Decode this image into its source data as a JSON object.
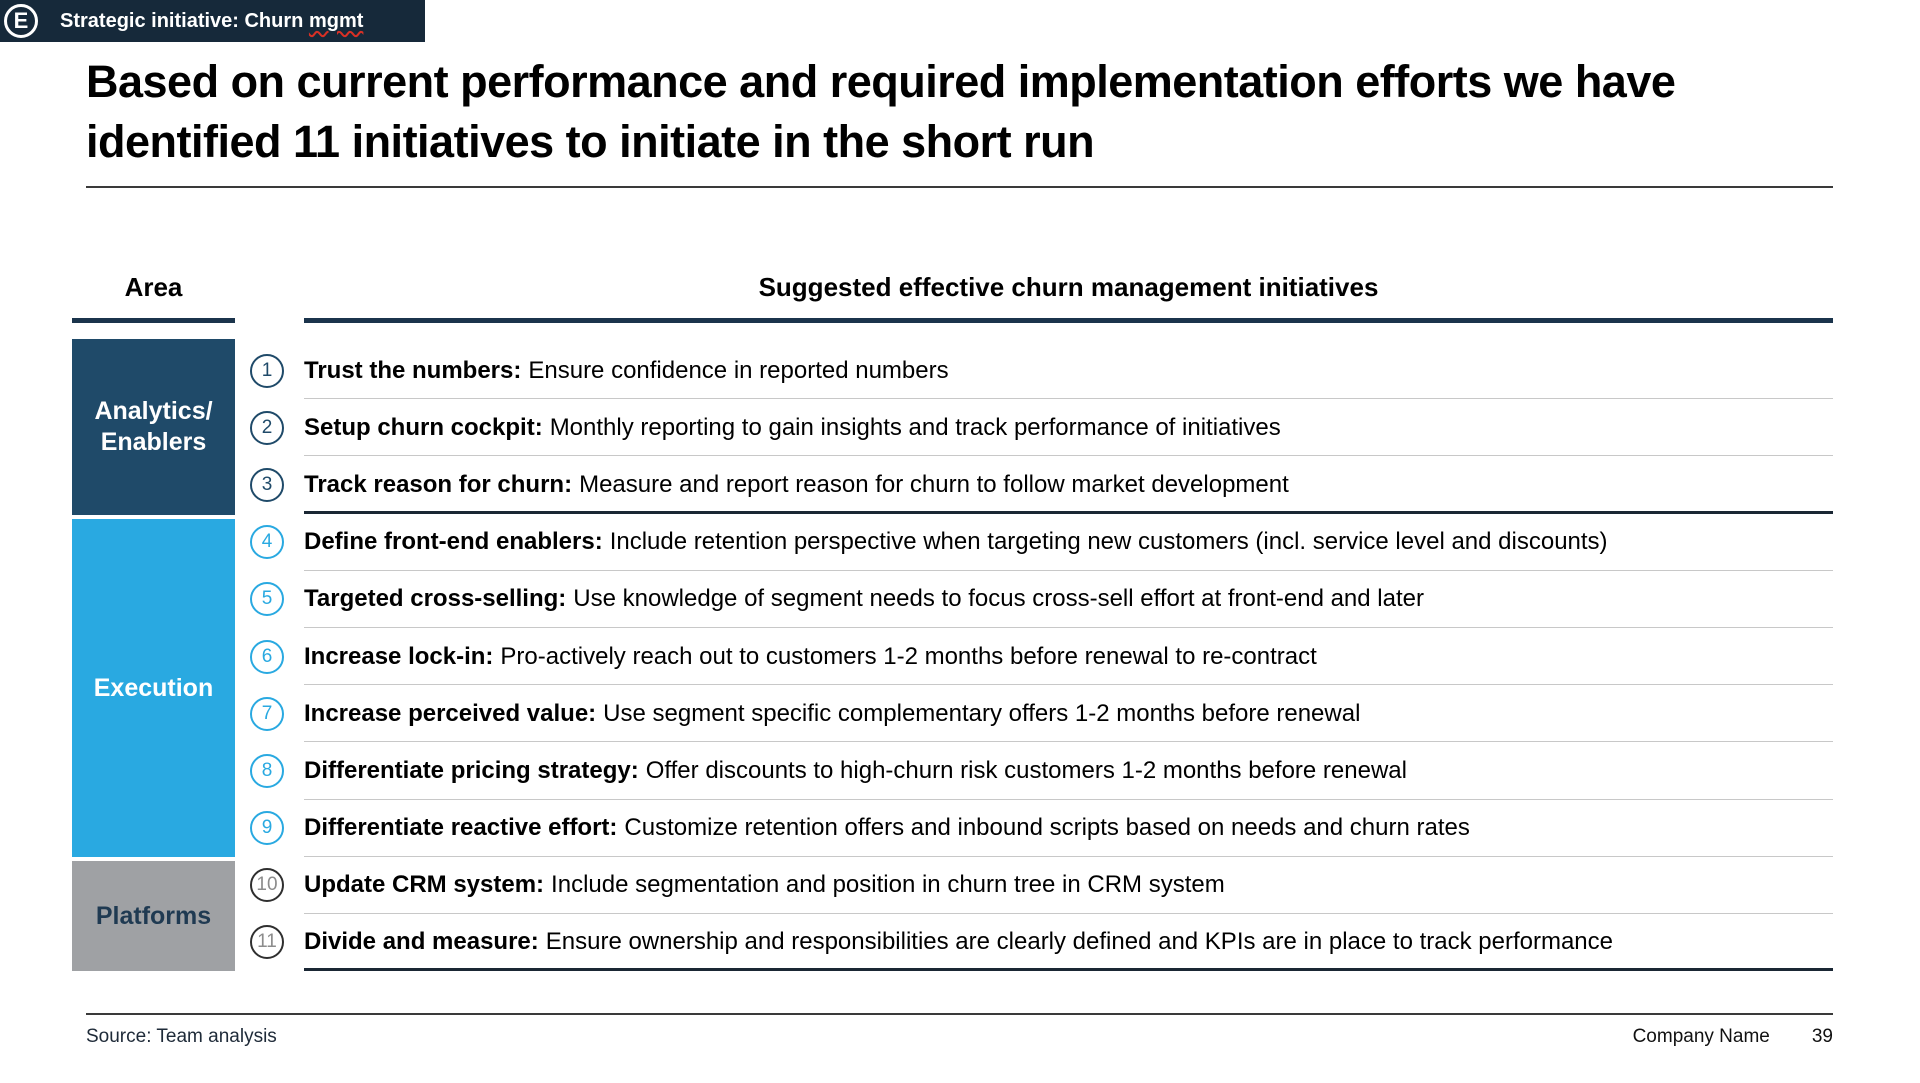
{
  "badge": {
    "letter": "E",
    "label": "Strategic initiative: Churn",
    "flagged_word": "mgmt"
  },
  "title": "Based on current performance and required implementation efforts we have identified 11 initiatives to initiate in the short run",
  "table": {
    "area_header": "Area",
    "initiatives_header": "Suggested effective churn management initiatives",
    "groups": [
      {
        "label": "Analytics/\nEnablers",
        "color": "#1F4A69",
        "text_color": "#FFFFFF",
        "rows": "1-3"
      },
      {
        "label": "Execution",
        "color": "#29A9E1",
        "text_color": "#FFFFFF",
        "rows": "4-9"
      },
      {
        "label": "Platforms",
        "color": "#9FA1A4",
        "text_color": "#1F3A52",
        "rows": "10-11"
      }
    ],
    "rows": [
      {
        "number": "1",
        "label": "Trust the numbers:",
        "description": "Ensure confidence in reported numbers"
      },
      {
        "number": "2",
        "label": "Setup churn cockpit:",
        "description": "Monthly reporting to gain insights and track performance of initiatives"
      },
      {
        "number": "3",
        "label": "Track reason for churn:",
        "description": "Measure and report reason for churn to follow market development"
      },
      {
        "number": "4",
        "label": "Define front-end enablers:",
        "description": "Include retention perspective when targeting new customers (incl. service level and discounts)"
      },
      {
        "number": "5",
        "label": "Targeted cross-selling:",
        "description": "Use knowledge of segment needs to focus cross-sell effort at front-end and later"
      },
      {
        "number": "6",
        "label": "Increase lock-in:",
        "description": "Pro-actively reach out to customers 1-2 months before renewal to re-contract"
      },
      {
        "number": "7",
        "label": "Increase perceived value:",
        "description": "Use segment specific complementary offers 1-2 months before renewal"
      },
      {
        "number": "8",
        "label": "Differentiate pricing strategy:",
        "description": "Offer discounts to high-churn risk customers 1-2 months before renewal"
      },
      {
        "number": "9",
        "label": "Differentiate reactive effort:",
        "description": "Customize retention offers and inbound scripts based on needs and churn rates"
      },
      {
        "number": "10",
        "label": "Update CRM system:",
        "description": "Include segmentation and position in churn tree in CRM system"
      },
      {
        "number": "11",
        "label": "Divide and measure:",
        "description": "Ensure ownership and responsibilities are clearly defined and KPIs are in place to track performance"
      }
    ]
  },
  "footer": {
    "source": "Source: Team analysis",
    "company": "Company Name",
    "page": "39"
  },
  "colors": {
    "badge_bg": "#16293A",
    "navy": "#1F4A69",
    "light_blue": "#29A9E1",
    "gray_block": "#9FA1A4",
    "platforms_text": "#1F3A52",
    "header_rule": "#1B344C",
    "group_rule": "#1A2734",
    "thin_rule": "#C8C8C8",
    "squiggle_red": "#D93025",
    "gray_number": "#8C8C8C"
  }
}
